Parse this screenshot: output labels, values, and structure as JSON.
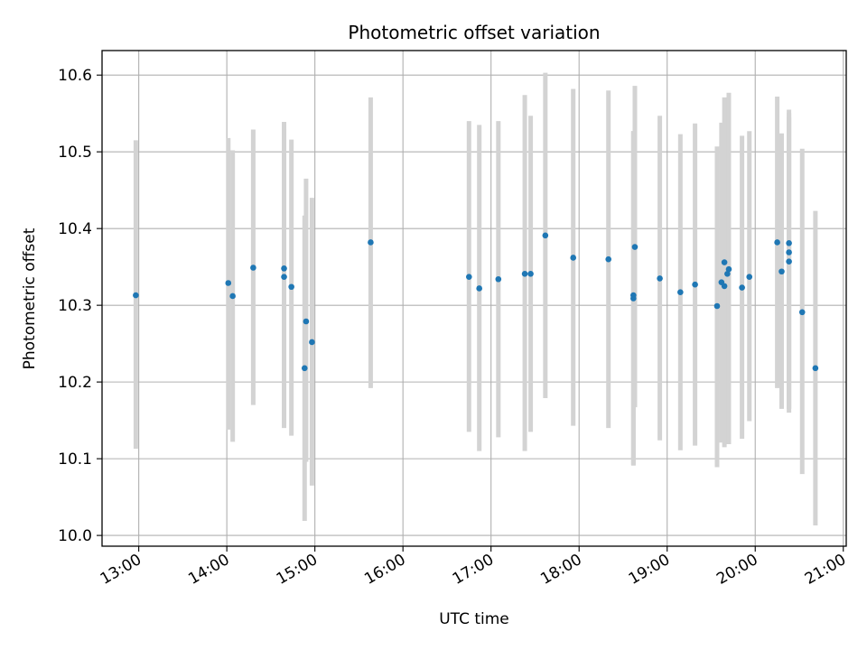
{
  "chart_data": {
    "type": "scatter",
    "title": "Photometric offset variation",
    "xlabel": "UTC time",
    "ylabel": "Photometric offset",
    "x_axis_kind": "time",
    "xlim": [
      "12:35",
      "21:02"
    ],
    "ylim": [
      9.986,
      10.632
    ],
    "x_ticks": [
      "13:00",
      "14:00",
      "15:00",
      "16:00",
      "17:00",
      "18:00",
      "19:00",
      "20:00",
      "21:00"
    ],
    "y_ticks": [
      "10.0",
      "10.1",
      "10.2",
      "10.3",
      "10.4",
      "10.5",
      "10.6"
    ],
    "grid": true,
    "point_color": "#1f77b4",
    "errorbar_color": "#d3d3d3",
    "points": [
      {
        "x": "12:58",
        "y": 10.313,
        "ylo": 10.113,
        "yhi": 10.515
      },
      {
        "x": "14:01",
        "y": 10.329,
        "ylo": 10.138,
        "yhi": 10.518
      },
      {
        "x": "14:04",
        "y": 10.312,
        "ylo": 10.122,
        "yhi": 10.502
      },
      {
        "x": "14:18",
        "y": 10.349,
        "ylo": 10.17,
        "yhi": 10.529
      },
      {
        "x": "14:39",
        "y": 10.348,
        "ylo": 10.14,
        "yhi": 10.539
      },
      {
        "x": "14:39",
        "y": 10.337,
        "ylo": 10.144,
        "yhi": 10.53
      },
      {
        "x": "14:44",
        "y": 10.324,
        "ylo": 10.13,
        "yhi": 10.516
      },
      {
        "x": "14:53",
        "y": 10.218,
        "ylo": 10.019,
        "yhi": 10.417
      },
      {
        "x": "14:54",
        "y": 10.279,
        "ylo": 10.096,
        "yhi": 10.465
      },
      {
        "x": "14:58",
        "y": 10.252,
        "ylo": 10.065,
        "yhi": 10.44
      },
      {
        "x": "15:38",
        "y": 10.382,
        "ylo": 10.192,
        "yhi": 10.571
      },
      {
        "x": "16:45",
        "y": 10.337,
        "ylo": 10.135,
        "yhi": 10.54
      },
      {
        "x": "16:52",
        "y": 10.322,
        "ylo": 10.11,
        "yhi": 10.535
      },
      {
        "x": "17:05",
        "y": 10.334,
        "ylo": 10.128,
        "yhi": 10.54
      },
      {
        "x": "17:23",
        "y": 10.341,
        "ylo": 10.11,
        "yhi": 10.574
      },
      {
        "x": "17:27",
        "y": 10.341,
        "ylo": 10.135,
        "yhi": 10.547
      },
      {
        "x": "17:37",
        "y": 10.391,
        "ylo": 10.179,
        "yhi": 10.603
      },
      {
        "x": "17:56",
        "y": 10.362,
        "ylo": 10.143,
        "yhi": 10.582
      },
      {
        "x": "18:20",
        "y": 10.36,
        "ylo": 10.14,
        "yhi": 10.58
      },
      {
        "x": "18:37",
        "y": 10.313,
        "ylo": 10.091,
        "yhi": 10.527
      },
      {
        "x": "18:37",
        "y": 10.309,
        "ylo": 10.092,
        "yhi": 10.527
      },
      {
        "x": "18:38",
        "y": 10.376,
        "ylo": 10.167,
        "yhi": 10.586
      },
      {
        "x": "18:55",
        "y": 10.335,
        "ylo": 10.124,
        "yhi": 10.547
      },
      {
        "x": "19:09",
        "y": 10.317,
        "ylo": 10.111,
        "yhi": 10.523
      },
      {
        "x": "19:19",
        "y": 10.327,
        "ylo": 10.117,
        "yhi": 10.537
      },
      {
        "x": "19:34",
        "y": 10.299,
        "ylo": 10.089,
        "yhi": 10.507
      },
      {
        "x": "19:37",
        "y": 10.33,
        "ylo": 10.121,
        "yhi": 10.538
      },
      {
        "x": "19:39",
        "y": 10.325,
        "ylo": 10.115,
        "yhi": 10.534
      },
      {
        "x": "19:39",
        "y": 10.356,
        "ylo": 10.141,
        "yhi": 10.571
      },
      {
        "x": "19:41",
        "y": 10.341,
        "ylo": 10.129,
        "yhi": 10.553
      },
      {
        "x": "19:42",
        "y": 10.347,
        "ylo": 10.119,
        "yhi": 10.577
      },
      {
        "x": "19:51",
        "y": 10.323,
        "ylo": 10.126,
        "yhi": 10.521
      },
      {
        "x": "19:56",
        "y": 10.337,
        "ylo": 10.149,
        "yhi": 10.527
      },
      {
        "x": "20:15",
        "y": 10.382,
        "ylo": 10.192,
        "yhi": 10.572
      },
      {
        "x": "20:18",
        "y": 10.344,
        "ylo": 10.165,
        "yhi": 10.524
      },
      {
        "x": "20:23",
        "y": 10.381,
        "ylo": 10.16,
        "yhi": 10.555
      },
      {
        "x": "20:23",
        "y": 10.369,
        "ylo": 10.165,
        "yhi": 10.55
      },
      {
        "x": "20:23",
        "y": 10.357,
        "ylo": 10.165,
        "yhi": 10.545
      },
      {
        "x": "20:32",
        "y": 10.291,
        "ylo": 10.08,
        "yhi": 10.504
      },
      {
        "x": "20:41",
        "y": 10.218,
        "ylo": 10.013,
        "yhi": 10.423
      }
    ]
  }
}
